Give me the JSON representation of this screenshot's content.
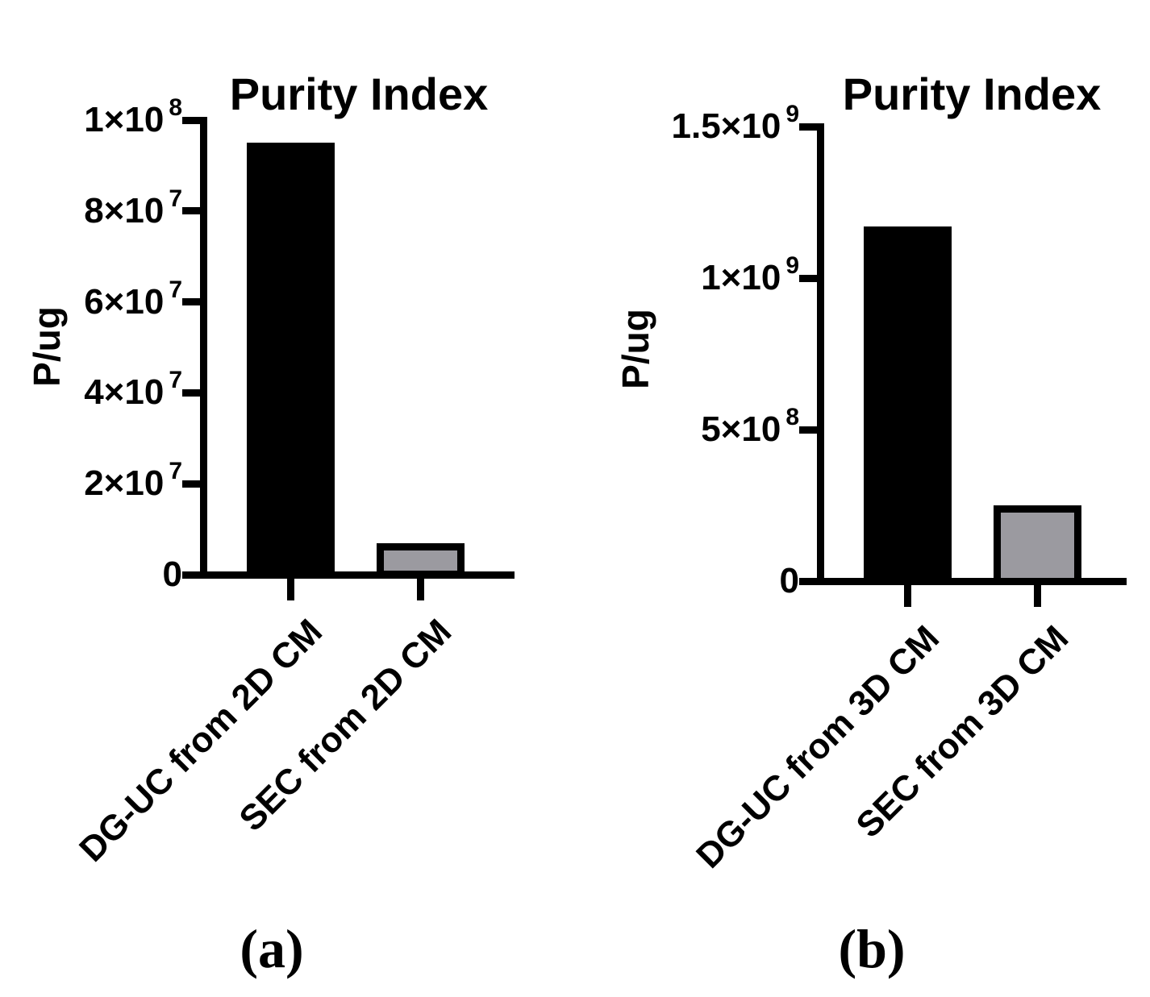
{
  "figure": {
    "panel_labels": [
      "(a)",
      "(b)"
    ]
  },
  "chart_data": [
    {
      "type": "bar",
      "panel": "(a)",
      "title": "Purity Index",
      "ylabel": "P/ug",
      "xlabel": "",
      "categories": [
        "DG-UC from 2D CM",
        "SEC from 2D CM"
      ],
      "values": [
        95000000,
        7000000
      ],
      "bar_colors": [
        "#000000",
        "#9b9aa0"
      ],
      "ylim": [
        0,
        100000000
      ],
      "grid": false,
      "legend_position": "none",
      "yticks": [
        {
          "value": 0,
          "mantissa": "0",
          "exp": ""
        },
        {
          "value": 20000000,
          "mantissa": "2×10",
          "exp": "7"
        },
        {
          "value": 40000000,
          "mantissa": "4×10",
          "exp": "7"
        },
        {
          "value": 60000000,
          "mantissa": "6×10",
          "exp": "7"
        },
        {
          "value": 80000000,
          "mantissa": "8×10",
          "exp": "7"
        },
        {
          "value": 100000000,
          "mantissa": "1×10",
          "exp": "8"
        }
      ]
    },
    {
      "type": "bar",
      "panel": "(b)",
      "title": "Purity Index",
      "ylabel": "P/ug",
      "xlabel": "",
      "categories": [
        "DG-UC from 3D CM",
        "SEC from 3D CM"
      ],
      "values": [
        1170000000,
        250000000
      ],
      "bar_colors": [
        "#000000",
        "#9b9aa0"
      ],
      "ylim": [
        0,
        1500000000
      ],
      "grid": false,
      "legend_position": "none",
      "yticks": [
        {
          "value": 0,
          "mantissa": "0",
          "exp": ""
        },
        {
          "value": 500000000,
          "mantissa": "5×10",
          "exp": "8"
        },
        {
          "value": 1000000000,
          "mantissa": "1×10",
          "exp": "9"
        },
        {
          "value": 1500000000,
          "mantissa": "1.5×10",
          "exp": "9"
        }
      ]
    }
  ]
}
